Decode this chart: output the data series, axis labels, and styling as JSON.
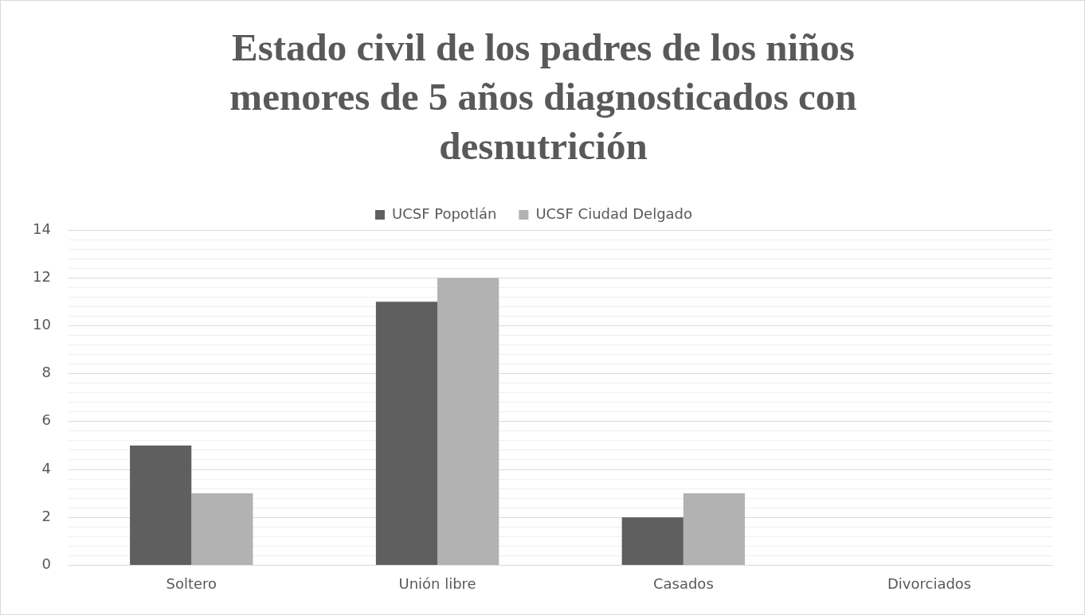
{
  "chart_data": {
    "type": "bar",
    "title": "Estado civil de los padres de los niños menores de 5 años diagnosticados con desnutrición",
    "categories": [
      "Soltero",
      "Unión libre",
      "Casados",
      "Divorciados"
    ],
    "series": [
      {
        "name": "UCSF Popotlán",
        "color": "#5f5f5f",
        "values": [
          5,
          11,
          2,
          0
        ]
      },
      {
        "name": "UCSF Ciudad Delgado",
        "color": "#b2b2b2",
        "values": [
          3,
          12,
          3,
          0
        ]
      }
    ],
    "ylim": [
      0,
      14
    ],
    "yticks": [
      0,
      {
        "value": 0.4,
        "label": null
      },
      {
        "value": 0.8,
        "label": null
      },
      {
        "value": 1.2,
        "label": null
      },
      {
        "value": 1.6,
        "label": null
      },
      2,
      {
        "value": 2.4,
        "label": null
      },
      {
        "value": 2.8,
        "label": null
      },
      {
        "value": 3.2,
        "label": null
      },
      {
        "value": 3.6,
        "label": null
      },
      4,
      {
        "value": 4.4,
        "label": null
      },
      {
        "value": 4.8,
        "label": null
      },
      {
        "value": 5.2,
        "label": null
      },
      {
        "value": 5.6,
        "label": null
      },
      6,
      {
        "value": 6.4,
        "label": null
      },
      {
        "value": 6.8,
        "label": null
      },
      {
        "value": 7.2,
        "label": null
      },
      {
        "value": 7.6,
        "label": null
      },
      8,
      {
        "value": 8.4,
        "label": null
      },
      {
        "value": 8.8,
        "label": null
      },
      {
        "value": 9.2,
        "label": null
      },
      {
        "value": 9.6,
        "label": null
      },
      10,
      {
        "value": 10.4,
        "label": null
      },
      {
        "value": 10.8,
        "label": null
      },
      {
        "value": 11.2,
        "label": null
      },
      {
        "value": 11.6,
        "label": null
      },
      12,
      {
        "value": 12.4,
        "label": null
      },
      {
        "value": 12.8,
        "label": null
      },
      {
        "value": 13.2,
        "label": null
      },
      {
        "value": 13.6,
        "label": null
      },
      14
    ],
    "grid": "y",
    "legend": "top"
  }
}
